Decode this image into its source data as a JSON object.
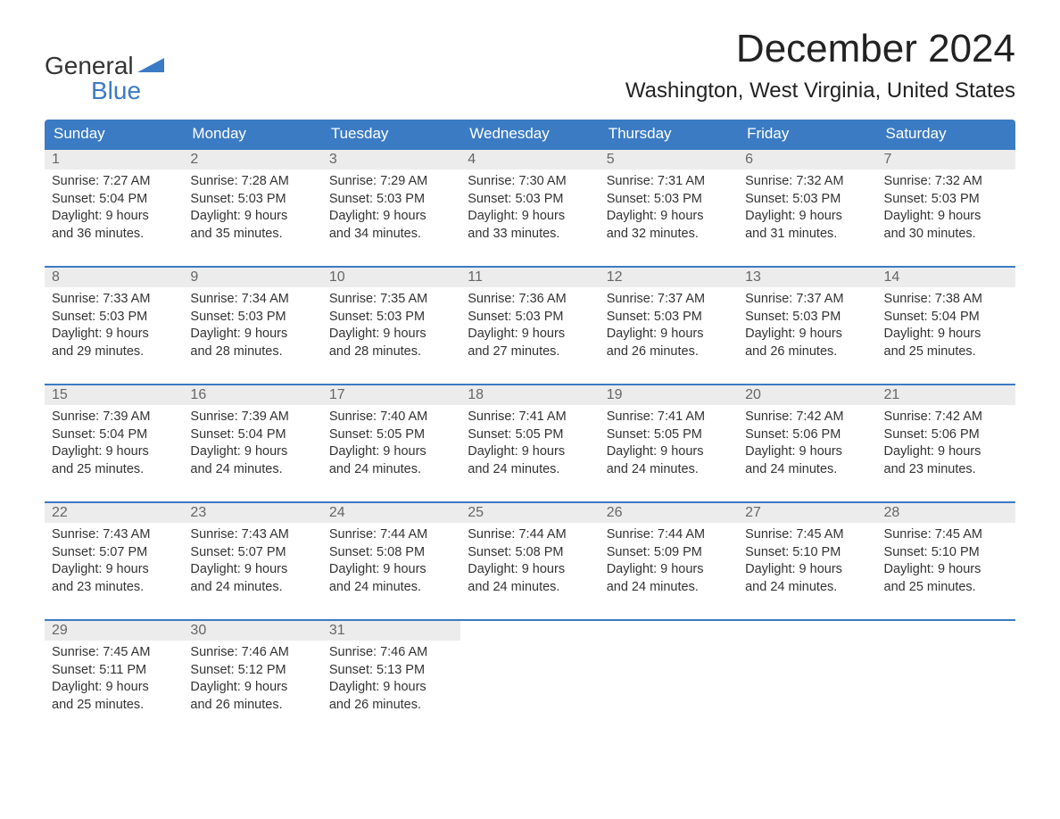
{
  "logo": {
    "part1": "General",
    "part2": "Blue"
  },
  "title": "December 2024",
  "location": "Washington, West Virginia, United States",
  "colors": {
    "brand_blue": "#3b7bc4",
    "header_text": "#ffffff",
    "daynum_bg": "#ececec",
    "daynum_text": "#666666",
    "body_text": "#333333",
    "page_bg": "#ffffff",
    "week_border": "#3b7bc4"
  },
  "day_headers": [
    "Sunday",
    "Monday",
    "Tuesday",
    "Wednesday",
    "Thursday",
    "Friday",
    "Saturday"
  ],
  "weeks": [
    [
      {
        "num": "1",
        "sunrise": "Sunrise: 7:27 AM",
        "sunset": "Sunset: 5:04 PM",
        "daylight1": "Daylight: 9 hours",
        "daylight2": "and 36 minutes."
      },
      {
        "num": "2",
        "sunrise": "Sunrise: 7:28 AM",
        "sunset": "Sunset: 5:03 PM",
        "daylight1": "Daylight: 9 hours",
        "daylight2": "and 35 minutes."
      },
      {
        "num": "3",
        "sunrise": "Sunrise: 7:29 AM",
        "sunset": "Sunset: 5:03 PM",
        "daylight1": "Daylight: 9 hours",
        "daylight2": "and 34 minutes."
      },
      {
        "num": "4",
        "sunrise": "Sunrise: 7:30 AM",
        "sunset": "Sunset: 5:03 PM",
        "daylight1": "Daylight: 9 hours",
        "daylight2": "and 33 minutes."
      },
      {
        "num": "5",
        "sunrise": "Sunrise: 7:31 AM",
        "sunset": "Sunset: 5:03 PM",
        "daylight1": "Daylight: 9 hours",
        "daylight2": "and 32 minutes."
      },
      {
        "num": "6",
        "sunrise": "Sunrise: 7:32 AM",
        "sunset": "Sunset: 5:03 PM",
        "daylight1": "Daylight: 9 hours",
        "daylight2": "and 31 minutes."
      },
      {
        "num": "7",
        "sunrise": "Sunrise: 7:32 AM",
        "sunset": "Sunset: 5:03 PM",
        "daylight1": "Daylight: 9 hours",
        "daylight2": "and 30 minutes."
      }
    ],
    [
      {
        "num": "8",
        "sunrise": "Sunrise: 7:33 AM",
        "sunset": "Sunset: 5:03 PM",
        "daylight1": "Daylight: 9 hours",
        "daylight2": "and 29 minutes."
      },
      {
        "num": "9",
        "sunrise": "Sunrise: 7:34 AM",
        "sunset": "Sunset: 5:03 PM",
        "daylight1": "Daylight: 9 hours",
        "daylight2": "and 28 minutes."
      },
      {
        "num": "10",
        "sunrise": "Sunrise: 7:35 AM",
        "sunset": "Sunset: 5:03 PM",
        "daylight1": "Daylight: 9 hours",
        "daylight2": "and 28 minutes."
      },
      {
        "num": "11",
        "sunrise": "Sunrise: 7:36 AM",
        "sunset": "Sunset: 5:03 PM",
        "daylight1": "Daylight: 9 hours",
        "daylight2": "and 27 minutes."
      },
      {
        "num": "12",
        "sunrise": "Sunrise: 7:37 AM",
        "sunset": "Sunset: 5:03 PM",
        "daylight1": "Daylight: 9 hours",
        "daylight2": "and 26 minutes."
      },
      {
        "num": "13",
        "sunrise": "Sunrise: 7:37 AM",
        "sunset": "Sunset: 5:03 PM",
        "daylight1": "Daylight: 9 hours",
        "daylight2": "and 26 minutes."
      },
      {
        "num": "14",
        "sunrise": "Sunrise: 7:38 AM",
        "sunset": "Sunset: 5:04 PM",
        "daylight1": "Daylight: 9 hours",
        "daylight2": "and 25 minutes."
      }
    ],
    [
      {
        "num": "15",
        "sunrise": "Sunrise: 7:39 AM",
        "sunset": "Sunset: 5:04 PM",
        "daylight1": "Daylight: 9 hours",
        "daylight2": "and 25 minutes."
      },
      {
        "num": "16",
        "sunrise": "Sunrise: 7:39 AM",
        "sunset": "Sunset: 5:04 PM",
        "daylight1": "Daylight: 9 hours",
        "daylight2": "and 24 minutes."
      },
      {
        "num": "17",
        "sunrise": "Sunrise: 7:40 AM",
        "sunset": "Sunset: 5:05 PM",
        "daylight1": "Daylight: 9 hours",
        "daylight2": "and 24 minutes."
      },
      {
        "num": "18",
        "sunrise": "Sunrise: 7:41 AM",
        "sunset": "Sunset: 5:05 PM",
        "daylight1": "Daylight: 9 hours",
        "daylight2": "and 24 minutes."
      },
      {
        "num": "19",
        "sunrise": "Sunrise: 7:41 AM",
        "sunset": "Sunset: 5:05 PM",
        "daylight1": "Daylight: 9 hours",
        "daylight2": "and 24 minutes."
      },
      {
        "num": "20",
        "sunrise": "Sunrise: 7:42 AM",
        "sunset": "Sunset: 5:06 PM",
        "daylight1": "Daylight: 9 hours",
        "daylight2": "and 24 minutes."
      },
      {
        "num": "21",
        "sunrise": "Sunrise: 7:42 AM",
        "sunset": "Sunset: 5:06 PM",
        "daylight1": "Daylight: 9 hours",
        "daylight2": "and 23 minutes."
      }
    ],
    [
      {
        "num": "22",
        "sunrise": "Sunrise: 7:43 AM",
        "sunset": "Sunset: 5:07 PM",
        "daylight1": "Daylight: 9 hours",
        "daylight2": "and 23 minutes."
      },
      {
        "num": "23",
        "sunrise": "Sunrise: 7:43 AM",
        "sunset": "Sunset: 5:07 PM",
        "daylight1": "Daylight: 9 hours",
        "daylight2": "and 24 minutes."
      },
      {
        "num": "24",
        "sunrise": "Sunrise: 7:44 AM",
        "sunset": "Sunset: 5:08 PM",
        "daylight1": "Daylight: 9 hours",
        "daylight2": "and 24 minutes."
      },
      {
        "num": "25",
        "sunrise": "Sunrise: 7:44 AM",
        "sunset": "Sunset: 5:08 PM",
        "daylight1": "Daylight: 9 hours",
        "daylight2": "and 24 minutes."
      },
      {
        "num": "26",
        "sunrise": "Sunrise: 7:44 AM",
        "sunset": "Sunset: 5:09 PM",
        "daylight1": "Daylight: 9 hours",
        "daylight2": "and 24 minutes."
      },
      {
        "num": "27",
        "sunrise": "Sunrise: 7:45 AM",
        "sunset": "Sunset: 5:10 PM",
        "daylight1": "Daylight: 9 hours",
        "daylight2": "and 24 minutes."
      },
      {
        "num": "28",
        "sunrise": "Sunrise: 7:45 AM",
        "sunset": "Sunset: 5:10 PM",
        "daylight1": "Daylight: 9 hours",
        "daylight2": "and 25 minutes."
      }
    ],
    [
      {
        "num": "29",
        "sunrise": "Sunrise: 7:45 AM",
        "sunset": "Sunset: 5:11 PM",
        "daylight1": "Daylight: 9 hours",
        "daylight2": "and 25 minutes."
      },
      {
        "num": "30",
        "sunrise": "Sunrise: 7:46 AM",
        "sunset": "Sunset: 5:12 PM",
        "daylight1": "Daylight: 9 hours",
        "daylight2": "and 26 minutes."
      },
      {
        "num": "31",
        "sunrise": "Sunrise: 7:46 AM",
        "sunset": "Sunset: 5:13 PM",
        "daylight1": "Daylight: 9 hours",
        "daylight2": "and 26 minutes."
      },
      null,
      null,
      null,
      null
    ]
  ]
}
